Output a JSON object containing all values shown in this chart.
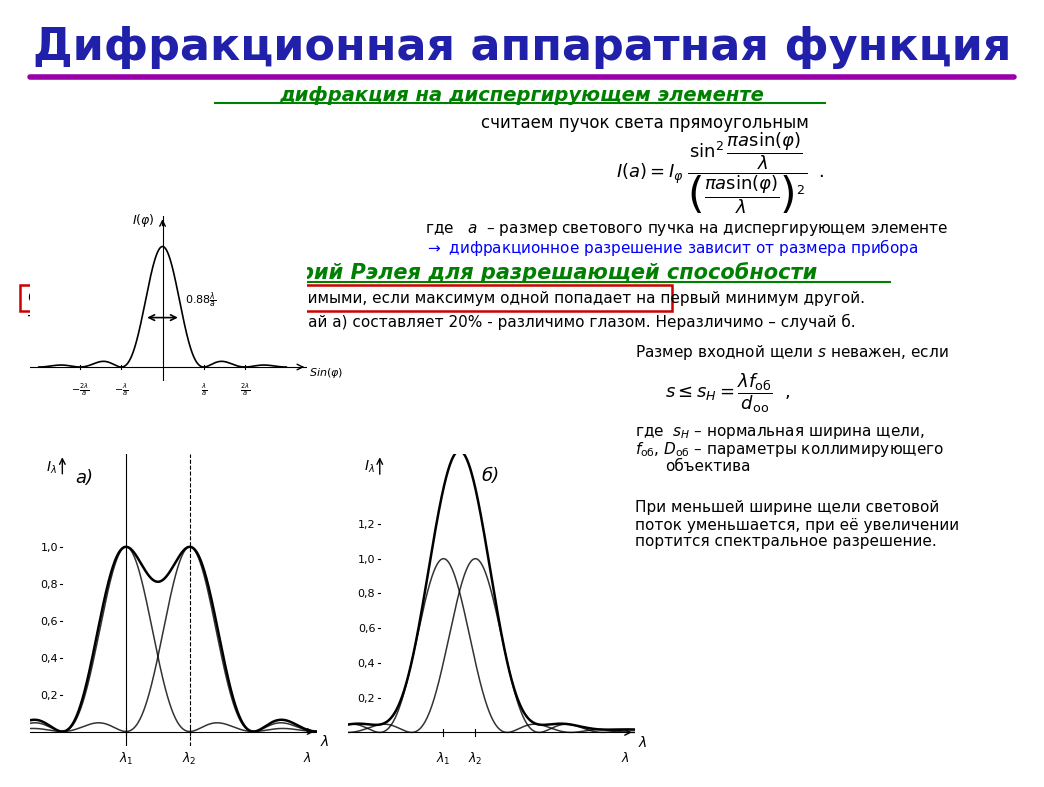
{
  "title": "Дифракционная аппаратная функция",
  "title_color": "#2020AA",
  "title_fontsize": 32,
  "separator_color": "#9900AA",
  "bg_color": "#FFFFFF",
  "section1_title": "дифракция на диспергирующем элементе",
  "section1_color": "#008000",
  "section1_subtitle": "считаем пучок света прямоугольным",
  "arrow_text_color": "#0000FF",
  "section2_title": "Критерий Рэлея для разрешающей способности",
  "section2_color": "#008000",
  "rayleigh_box_text": "Считаем две тонких линии различимыми, если максимум одной попадает на первый минимум другой.",
  "rayleigh_box_color": "#CC0000",
  "provalt_text": "Тогда провал между пиками (случай а) составляет 20% - различимо глазом. Неразличимо – случай б.",
  "plot_a_label": "а)",
  "plot_b_label": "б)"
}
